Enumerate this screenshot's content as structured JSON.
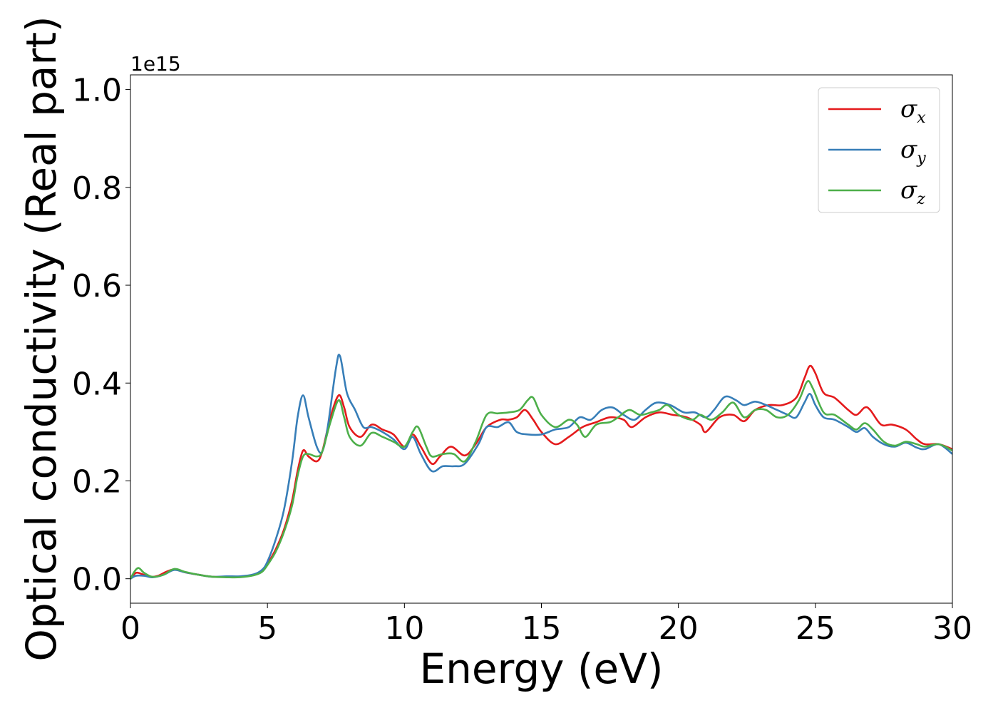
{
  "chart_data": {
    "type": "line",
    "title": "",
    "xlabel": "Energy (eV)",
    "ylabel": "Optical conductivity (Real part)",
    "y_offset_label": "1e15",
    "xlim": [
      0,
      30
    ],
    "ylim": [
      -0.05,
      1.03
    ],
    "x_ticks": [
      0,
      5,
      10,
      15,
      20,
      25,
      30
    ],
    "x_tick_labels": [
      "0",
      "5",
      "10",
      "15",
      "20",
      "25",
      "30"
    ],
    "y_ticks": [
      0.0,
      0.2,
      0.4,
      0.6,
      0.8,
      1.0
    ],
    "y_tick_labels": [
      "0.0",
      "0.2",
      "0.4",
      "0.6",
      "0.8",
      "1.0"
    ],
    "grid": false,
    "legend_position": "top-right",
    "series": [
      {
        "name": "σx",
        "symbol": "σ",
        "subscript": "x",
        "color": "#e41a1c",
        "points": [
          [
            0,
            0.0
          ],
          [
            0.2,
            0.012
          ],
          [
            0.4,
            0.01
          ],
          [
            0.7,
            0.004
          ],
          [
            1.0,
            0.006
          ],
          [
            1.3,
            0.014
          ],
          [
            1.6,
            0.019
          ],
          [
            2.0,
            0.013
          ],
          [
            2.5,
            0.008
          ],
          [
            3.0,
            0.004
          ],
          [
            3.5,
            0.004
          ],
          [
            4.0,
            0.004
          ],
          [
            4.5,
            0.008
          ],
          [
            4.8,
            0.015
          ],
          [
            5.0,
            0.03
          ],
          [
            5.3,
            0.06
          ],
          [
            5.6,
            0.1
          ],
          [
            5.9,
            0.16
          ],
          [
            6.1,
            0.22
          ],
          [
            6.3,
            0.262
          ],
          [
            6.5,
            0.25
          ],
          [
            6.8,
            0.24
          ],
          [
            7.0,
            0.26
          ],
          [
            7.3,
            0.33
          ],
          [
            7.6,
            0.375
          ],
          [
            7.8,
            0.35
          ],
          [
            8.0,
            0.31
          ],
          [
            8.4,
            0.29
          ],
          [
            8.8,
            0.315
          ],
          [
            9.2,
            0.305
          ],
          [
            9.6,
            0.295
          ],
          [
            10.0,
            0.27
          ],
          [
            10.3,
            0.295
          ],
          [
            10.6,
            0.27
          ],
          [
            11.0,
            0.235
          ],
          [
            11.3,
            0.25
          ],
          [
            11.7,
            0.27
          ],
          [
            12.2,
            0.252
          ],
          [
            12.6,
            0.275
          ],
          [
            13.0,
            0.31
          ],
          [
            13.5,
            0.325
          ],
          [
            13.8,
            0.325
          ],
          [
            14.1,
            0.33
          ],
          [
            14.4,
            0.345
          ],
          [
            14.7,
            0.325
          ],
          [
            15.0,
            0.3
          ],
          [
            15.5,
            0.275
          ],
          [
            16.0,
            0.29
          ],
          [
            16.5,
            0.31
          ],
          [
            17.0,
            0.32
          ],
          [
            17.5,
            0.33
          ],
          [
            18.0,
            0.325
          ],
          [
            18.3,
            0.31
          ],
          [
            18.8,
            0.33
          ],
          [
            19.3,
            0.34
          ],
          [
            19.8,
            0.335
          ],
          [
            20.3,
            0.33
          ],
          [
            20.8,
            0.315
          ],
          [
            21.0,
            0.3
          ],
          [
            21.5,
            0.33
          ],
          [
            22.0,
            0.335
          ],
          [
            22.4,
            0.322
          ],
          [
            22.8,
            0.345
          ],
          [
            23.3,
            0.355
          ],
          [
            23.8,
            0.355
          ],
          [
            24.3,
            0.37
          ],
          [
            24.6,
            0.41
          ],
          [
            24.8,
            0.435
          ],
          [
            25.0,
            0.42
          ],
          [
            25.3,
            0.38
          ],
          [
            25.7,
            0.37
          ],
          [
            26.2,
            0.345
          ],
          [
            26.5,
            0.335
          ],
          [
            26.8,
            0.35
          ],
          [
            27.0,
            0.345
          ],
          [
            27.4,
            0.315
          ],
          [
            27.8,
            0.315
          ],
          [
            28.3,
            0.305
          ],
          [
            28.7,
            0.285
          ],
          [
            29.0,
            0.275
          ],
          [
            29.5,
            0.275
          ],
          [
            30.0,
            0.265
          ]
        ]
      },
      {
        "name": "σy",
        "symbol": "σ",
        "subscript": "y",
        "color": "#377eb8",
        "points": [
          [
            0,
            0.0
          ],
          [
            0.2,
            0.006
          ],
          [
            0.5,
            0.006
          ],
          [
            0.8,
            0.003
          ],
          [
            1.2,
            0.008
          ],
          [
            1.6,
            0.018
          ],
          [
            2.0,
            0.013
          ],
          [
            2.5,
            0.008
          ],
          [
            3.0,
            0.004
          ],
          [
            3.5,
            0.005
          ],
          [
            4.0,
            0.005
          ],
          [
            4.5,
            0.009
          ],
          [
            4.8,
            0.018
          ],
          [
            5.0,
            0.035
          ],
          [
            5.3,
            0.08
          ],
          [
            5.6,
            0.14
          ],
          [
            5.9,
            0.24
          ],
          [
            6.1,
            0.33
          ],
          [
            6.3,
            0.375
          ],
          [
            6.5,
            0.33
          ],
          [
            6.8,
            0.27
          ],
          [
            7.0,
            0.26
          ],
          [
            7.2,
            0.31
          ],
          [
            7.5,
            0.43
          ],
          [
            7.65,
            0.455
          ],
          [
            7.9,
            0.38
          ],
          [
            8.2,
            0.345
          ],
          [
            8.5,
            0.31
          ],
          [
            8.8,
            0.31
          ],
          [
            9.2,
            0.3
          ],
          [
            9.6,
            0.285
          ],
          [
            10.0,
            0.265
          ],
          [
            10.3,
            0.29
          ],
          [
            10.6,
            0.255
          ],
          [
            11.0,
            0.22
          ],
          [
            11.4,
            0.23
          ],
          [
            11.8,
            0.23
          ],
          [
            12.2,
            0.235
          ],
          [
            12.7,
            0.275
          ],
          [
            13.0,
            0.31
          ],
          [
            13.4,
            0.31
          ],
          [
            13.8,
            0.32
          ],
          [
            14.1,
            0.3
          ],
          [
            14.5,
            0.295
          ],
          [
            15.0,
            0.295
          ],
          [
            15.5,
            0.305
          ],
          [
            16.0,
            0.31
          ],
          [
            16.4,
            0.33
          ],
          [
            16.8,
            0.325
          ],
          [
            17.2,
            0.345
          ],
          [
            17.6,
            0.35
          ],
          [
            18.0,
            0.335
          ],
          [
            18.4,
            0.325
          ],
          [
            18.8,
            0.345
          ],
          [
            19.2,
            0.36
          ],
          [
            19.7,
            0.355
          ],
          [
            20.2,
            0.34
          ],
          [
            20.6,
            0.34
          ],
          [
            21.0,
            0.33
          ],
          [
            21.3,
            0.345
          ],
          [
            21.7,
            0.372
          ],
          [
            22.1,
            0.365
          ],
          [
            22.4,
            0.355
          ],
          [
            22.8,
            0.362
          ],
          [
            23.2,
            0.355
          ],
          [
            23.6,
            0.345
          ],
          [
            24.0,
            0.335
          ],
          [
            24.3,
            0.33
          ],
          [
            24.6,
            0.36
          ],
          [
            24.8,
            0.378
          ],
          [
            25.0,
            0.355
          ],
          [
            25.3,
            0.33
          ],
          [
            25.7,
            0.325
          ],
          [
            26.2,
            0.31
          ],
          [
            26.5,
            0.3
          ],
          [
            26.8,
            0.308
          ],
          [
            27.1,
            0.29
          ],
          [
            27.5,
            0.275
          ],
          [
            27.9,
            0.27
          ],
          [
            28.3,
            0.278
          ],
          [
            28.7,
            0.268
          ],
          [
            29.0,
            0.265
          ],
          [
            29.5,
            0.275
          ],
          [
            30.0,
            0.255
          ]
        ]
      },
      {
        "name": "σz",
        "symbol": "σ",
        "subscript": "z",
        "color": "#4daf4a",
        "points": [
          [
            0,
            0.0
          ],
          [
            0.15,
            0.015
          ],
          [
            0.3,
            0.022
          ],
          [
            0.5,
            0.012
          ],
          [
            0.8,
            0.004
          ],
          [
            1.2,
            0.008
          ],
          [
            1.6,
            0.02
          ],
          [
            2.0,
            0.014
          ],
          [
            2.5,
            0.008
          ],
          [
            3.0,
            0.004
          ],
          [
            3.5,
            0.003
          ],
          [
            4.0,
            0.003
          ],
          [
            4.5,
            0.007
          ],
          [
            4.8,
            0.014
          ],
          [
            5.0,
            0.028
          ],
          [
            5.3,
            0.055
          ],
          [
            5.6,
            0.095
          ],
          [
            5.9,
            0.15
          ],
          [
            6.1,
            0.21
          ],
          [
            6.3,
            0.25
          ],
          [
            6.5,
            0.255
          ],
          [
            6.8,
            0.25
          ],
          [
            7.0,
            0.26
          ],
          [
            7.3,
            0.32
          ],
          [
            7.6,
            0.365
          ],
          [
            7.8,
            0.33
          ],
          [
            8.0,
            0.29
          ],
          [
            8.4,
            0.272
          ],
          [
            8.8,
            0.298
          ],
          [
            9.2,
            0.29
          ],
          [
            9.6,
            0.28
          ],
          [
            10.0,
            0.27
          ],
          [
            10.3,
            0.3
          ],
          [
            10.5,
            0.31
          ],
          [
            10.8,
            0.27
          ],
          [
            11.0,
            0.25
          ],
          [
            11.4,
            0.255
          ],
          [
            11.8,
            0.255
          ],
          [
            12.2,
            0.24
          ],
          [
            12.6,
            0.28
          ],
          [
            13.0,
            0.335
          ],
          [
            13.4,
            0.338
          ],
          [
            13.8,
            0.34
          ],
          [
            14.2,
            0.345
          ],
          [
            14.5,
            0.365
          ],
          [
            14.7,
            0.37
          ],
          [
            15.0,
            0.335
          ],
          [
            15.5,
            0.31
          ],
          [
            16.0,
            0.325
          ],
          [
            16.3,
            0.315
          ],
          [
            16.6,
            0.29
          ],
          [
            17.0,
            0.315
          ],
          [
            17.5,
            0.32
          ],
          [
            17.8,
            0.33
          ],
          [
            18.2,
            0.345
          ],
          [
            18.6,
            0.335
          ],
          [
            19.0,
            0.34
          ],
          [
            19.3,
            0.345
          ],
          [
            19.6,
            0.355
          ],
          [
            20.0,
            0.335
          ],
          [
            20.5,
            0.325
          ],
          [
            20.8,
            0.335
          ],
          [
            21.2,
            0.325
          ],
          [
            21.6,
            0.34
          ],
          [
            22.0,
            0.36
          ],
          [
            22.4,
            0.33
          ],
          [
            22.8,
            0.345
          ],
          [
            23.2,
            0.345
          ],
          [
            23.6,
            0.33
          ],
          [
            24.0,
            0.335
          ],
          [
            24.4,
            0.365
          ],
          [
            24.7,
            0.403
          ],
          [
            24.9,
            0.39
          ],
          [
            25.3,
            0.34
          ],
          [
            25.7,
            0.335
          ],
          [
            26.2,
            0.315
          ],
          [
            26.5,
            0.305
          ],
          [
            26.8,
            0.318
          ],
          [
            27.1,
            0.305
          ],
          [
            27.5,
            0.28
          ],
          [
            27.9,
            0.272
          ],
          [
            28.3,
            0.28
          ],
          [
            28.7,
            0.275
          ],
          [
            29.0,
            0.27
          ],
          [
            29.5,
            0.275
          ],
          [
            30.0,
            0.262
          ]
        ]
      }
    ]
  }
}
